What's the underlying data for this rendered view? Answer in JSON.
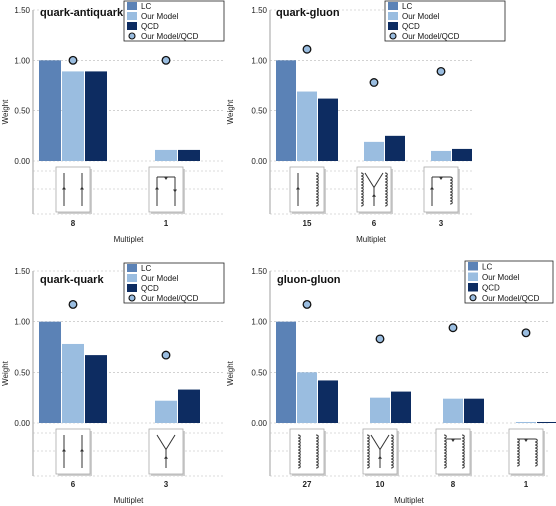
{
  "colors": {
    "LC": "#5b82b6",
    "Our Model": "#9abde0",
    "QCD": "#0d2c61",
    "Our Model/QCD": "#9abde0"
  },
  "legend_entries": [
    "LC",
    "Our Model",
    "QCD",
    "Our Model/QCD"
  ],
  "chart_data": [
    {
      "type": "bar",
      "title": "quark-antiquark",
      "xlabel": "Multiplet",
      "ylabel": "Weight",
      "ylim": [
        0,
        1.5
      ],
      "yticks": [
        "0.00",
        "0.50",
        "1.00",
        "1.50"
      ],
      "categories": [
        "8",
        "1"
      ],
      "diagram_icons": [
        "qq-parallel",
        "qq-annihilation"
      ],
      "series": [
        {
          "name": "LC",
          "kind": "bar",
          "values": [
            1.0,
            0.0
          ]
        },
        {
          "name": "Our Model",
          "kind": "bar",
          "values": [
            0.89,
            0.11
          ]
        },
        {
          "name": "QCD",
          "kind": "bar",
          "values": [
            0.89,
            0.11
          ]
        },
        {
          "name": "Our Model/QCD",
          "kind": "marker",
          "values": [
            1.0,
            1.0
          ]
        }
      ],
      "legend": "top-right"
    },
    {
      "type": "bar",
      "title": "quark-gluon",
      "xlabel": "Multiplet",
      "ylabel": "Weight",
      "ylim": [
        0,
        1.5
      ],
      "yticks": [
        "0.00",
        "0.50",
        "1.00",
        "1.50"
      ],
      "categories": [
        "15",
        "6",
        "3"
      ],
      "diagram_icons": [
        "qg-parallel",
        "qg-y",
        "qg-annihilation"
      ],
      "series": [
        {
          "name": "LC",
          "kind": "bar",
          "values": [
            1.0,
            0.0,
            0.0
          ]
        },
        {
          "name": "Our Model",
          "kind": "bar",
          "values": [
            0.69,
            0.19,
            0.1
          ]
        },
        {
          "name": "QCD",
          "kind": "bar",
          "values": [
            0.62,
            0.25,
            0.12
          ]
        },
        {
          "name": "Our Model/QCD",
          "kind": "marker",
          "values": [
            1.11,
            0.78,
            0.89
          ]
        }
      ],
      "legend": "top-right"
    },
    {
      "type": "bar",
      "title": "quark-quark",
      "xlabel": "Multiplet",
      "ylabel": "Weight",
      "ylim": [
        0,
        1.5
      ],
      "yticks": [
        "0.00",
        "0.50",
        "1.00",
        "1.50"
      ],
      "categories": [
        "6",
        "3"
      ],
      "diagram_icons": [
        "qq-parallel",
        "qq-y"
      ],
      "series": [
        {
          "name": "LC",
          "kind": "bar",
          "values": [
            1.0,
            0.0
          ]
        },
        {
          "name": "Our Model",
          "kind": "bar",
          "values": [
            0.78,
            0.22
          ]
        },
        {
          "name": "QCD",
          "kind": "bar",
          "values": [
            0.67,
            0.33
          ]
        },
        {
          "name": "Our Model/QCD",
          "kind": "marker",
          "values": [
            1.17,
            0.67
          ]
        }
      ],
      "legend": "top-right"
    },
    {
      "type": "bar",
      "title": "gluon-gluon",
      "xlabel": "Multiplet",
      "ylabel": "Weight",
      "ylim": [
        0,
        1.5
      ],
      "yticks": [
        "0.00",
        "0.50",
        "1.00",
        "1.50"
      ],
      "categories": [
        "27",
        "10",
        "8",
        "1"
      ],
      "diagram_icons": [
        "gg-parallel",
        "gg-y",
        "gg-mixed",
        "gg-annihilation"
      ],
      "series": [
        {
          "name": "LC",
          "kind": "bar",
          "values": [
            1.0,
            0.0,
            0.0,
            0.0
          ]
        },
        {
          "name": "Our Model",
          "kind": "bar",
          "values": [
            0.5,
            0.25,
            0.24,
            0.01
          ]
        },
        {
          "name": "QCD",
          "kind": "bar",
          "values": [
            0.42,
            0.31,
            0.24,
            0.01
          ]
        },
        {
          "name": "Our Model/QCD",
          "kind": "marker",
          "values": [
            1.17,
            0.83,
            0.94,
            0.89
          ]
        }
      ],
      "legend": "top-right"
    }
  ]
}
